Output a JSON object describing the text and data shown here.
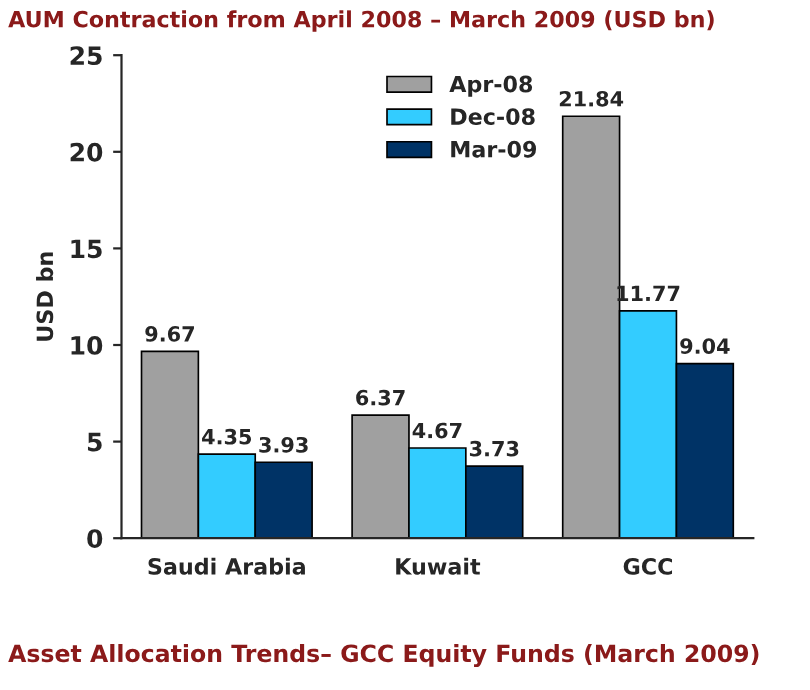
{
  "chart_data": {
    "type": "bar",
    "title": "AUM Contraction from April 2008 – March 2009 (USD bn)",
    "ylabel": "USD bn",
    "categories": [
      "Saudi Arabia",
      "Kuwait",
      "GCC"
    ],
    "series": [
      {
        "name": "Apr-08",
        "color": "#a0a0a0",
        "values": [
          9.67,
          6.37,
          21.84
        ]
      },
      {
        "name": "Dec-08",
        "color": "#33ccff",
        "values": [
          4.35,
          4.67,
          11.77
        ]
      },
      {
        "name": "Mar-09",
        "color": "#003366",
        "values": [
          3.93,
          3.73,
          9.04
        ]
      }
    ],
    "ylim": [
      0,
      25
    ],
    "yticks": [
      0,
      5,
      10,
      15,
      20,
      25
    ],
    "grid": false,
    "legend": "top right",
    "data_labels": true,
    "annotations": [
      "Asset Allocation Trends– GCC Equity Funds (March 2009)"
    ]
  }
}
